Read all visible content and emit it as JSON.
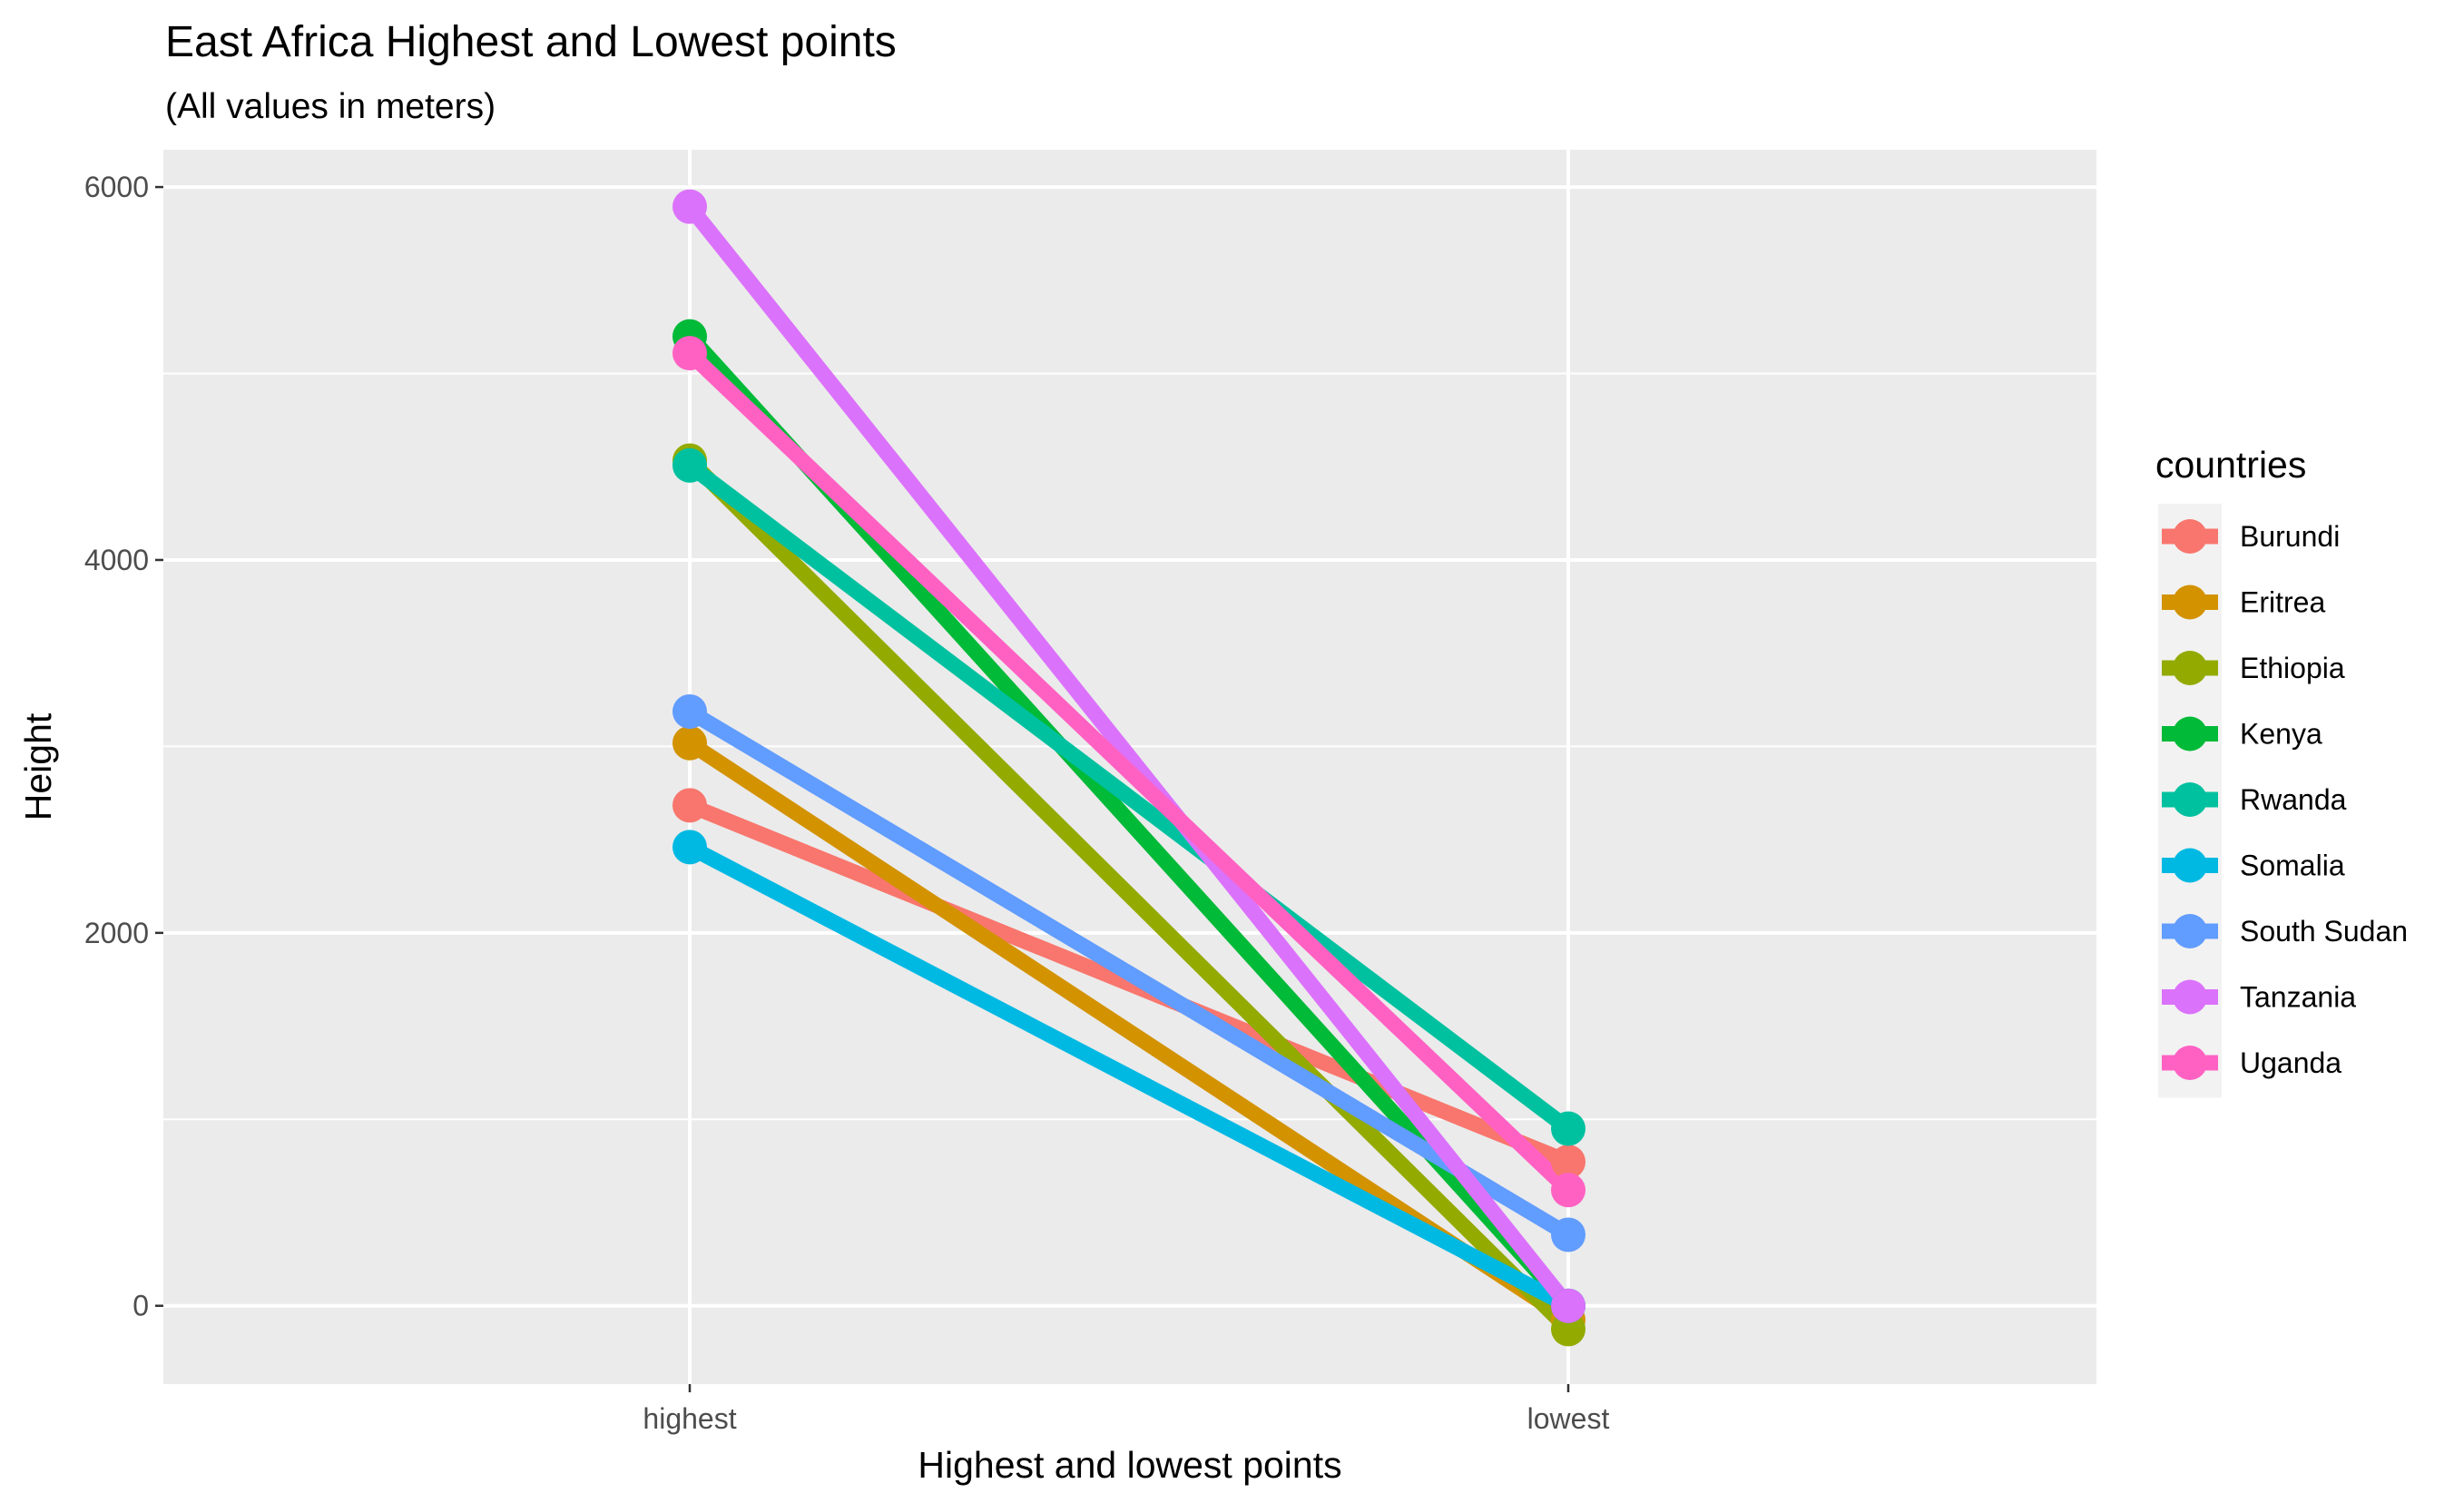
{
  "chart_data": {
    "type": "line",
    "title": "East Africa Highest and Lowest points",
    "subtitle": "(All values in meters)",
    "xlabel": "Highest and lowest points",
    "ylabel": "Height",
    "categories": [
      "highest",
      "lowest"
    ],
    "ylim": [
      -420,
      6200
    ],
    "yticks": [
      0,
      2000,
      4000,
      6000
    ],
    "yticks_labels": [
      "0",
      "2000",
      "4000",
      "6000"
    ],
    "grid": true,
    "legend": {
      "title": "countries",
      "position": "right"
    },
    "series": [
      {
        "name": "Burundi",
        "color": "#F8766D",
        "values": [
          2684,
          772
        ]
      },
      {
        "name": "Eritrea",
        "color": "#D39200",
        "values": [
          3018,
          -75
        ]
      },
      {
        "name": "Ethiopia",
        "color": "#93AA00",
        "values": [
          4533,
          -125
        ]
      },
      {
        "name": "Kenya",
        "color": "#00BA38",
        "values": [
          5199,
          0
        ]
      },
      {
        "name": "Rwanda",
        "color": "#00C19F",
        "values": [
          4507,
          950
        ]
      },
      {
        "name": "Somalia",
        "color": "#00B9E3",
        "values": [
          2460,
          0
        ]
      },
      {
        "name": "South Sudan",
        "color": "#619CFF",
        "values": [
          3187,
          381
        ]
      },
      {
        "name": "Tanzania",
        "color": "#DB72FB",
        "values": [
          5895,
          0
        ]
      },
      {
        "name": "Uganda",
        "color": "#FF61C3",
        "values": [
          5109,
          621
        ]
      }
    ]
  }
}
